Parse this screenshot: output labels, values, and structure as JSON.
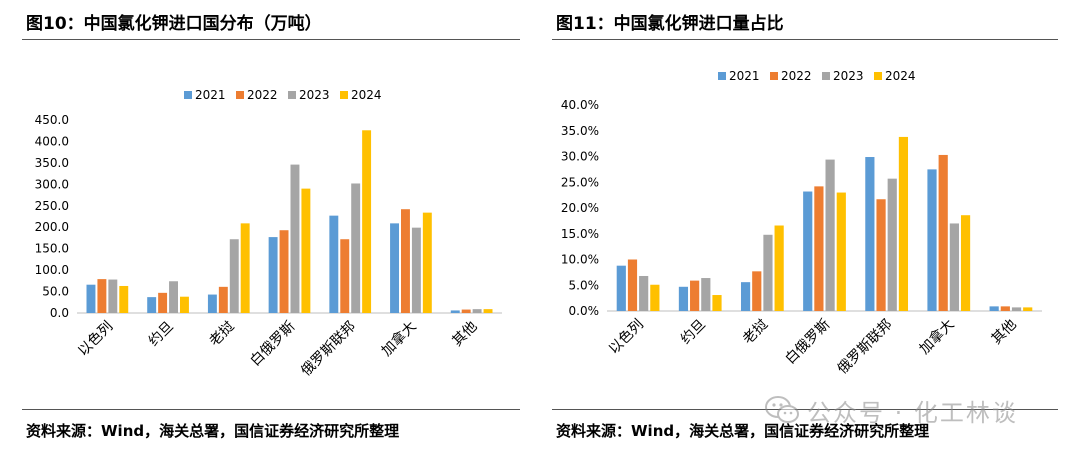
{
  "figures": [
    {
      "title": "图10：中国氯化钾进口国分布（万吨）",
      "source": "资料来源：Wind，海关总署，国信证券经济研究所整理",
      "chart_data": {
        "type": "bar",
        "categories": [
          "以色列",
          "约旦",
          "老挝",
          "白俄罗斯",
          "俄罗斯联邦",
          "加拿大",
          "其他"
        ],
        "series": [
          {
            "name": "2021",
            "color": "#5b9bd5",
            "values": [
              66,
              37,
              43,
              177,
              227,
              209,
              6
            ]
          },
          {
            "name": "2022",
            "color": "#ed7d31",
            "values": [
              79,
              47,
              61,
              193,
              172,
              242,
              8
            ]
          },
          {
            "name": "2023",
            "color": "#a5a5a5",
            "values": [
              78,
              74,
              172,
              346,
              302,
              199,
              9
            ]
          },
          {
            "name": "2024",
            "color": "#ffc000",
            "values": [
              63,
              38,
              209,
              290,
              426,
              234,
              9
            ]
          }
        ],
        "ylim": [
          0,
          450
        ],
        "yticks": [
          "0.0",
          "50.0",
          "100.0",
          "150.0",
          "200.0",
          "250.0",
          "300.0",
          "350.0",
          "400.0",
          "450.0"
        ],
        "ytick_values": [
          0,
          50,
          100,
          150,
          200,
          250,
          300,
          350,
          400,
          450
        ],
        "legend_position": "top-center",
        "grid": false
      }
    },
    {
      "title": "图11：中国氯化钾进口量占比",
      "source": "资料来源：Wind，海关总署，国信证券经济研究所整理",
      "chart_data": {
        "type": "bar",
        "categories": [
          "以色列",
          "约旦",
          "老挝",
          "白俄罗斯",
          "俄罗斯联邦",
          "加拿大",
          "其他"
        ],
        "series": [
          {
            "name": "2021",
            "color": "#5b9bd5",
            "values": [
              8.8,
              4.7,
              5.6,
              23.2,
              29.9,
              27.5,
              0.9
            ]
          },
          {
            "name": "2022",
            "color": "#ed7d31",
            "values": [
              10.0,
              5.9,
              7.7,
              24.2,
              21.7,
              30.3,
              0.9
            ]
          },
          {
            "name": "2023",
            "color": "#a5a5a5",
            "values": [
              6.8,
              6.4,
              14.8,
              29.4,
              25.7,
              17.0,
              0.7
            ]
          },
          {
            "name": "2024",
            "color": "#ffc000",
            "values": [
              5.1,
              3.1,
              16.6,
              23.0,
              33.8,
              18.6,
              0.7
            ]
          }
        ],
        "ylim": [
          0,
          40
        ],
        "yticks": [
          "0.0%",
          "5.0%",
          "10.0%",
          "15.0%",
          "20.0%",
          "25.0%",
          "30.0%",
          "35.0%",
          "40.0%"
        ],
        "ytick_values": [
          0,
          5,
          10,
          15,
          20,
          25,
          30,
          35,
          40
        ],
        "legend_position": "top-center",
        "grid": false
      }
    }
  ],
  "watermark": {
    "text": "公众号 · 化工林谈",
    "icon": "wechat-icon"
  }
}
